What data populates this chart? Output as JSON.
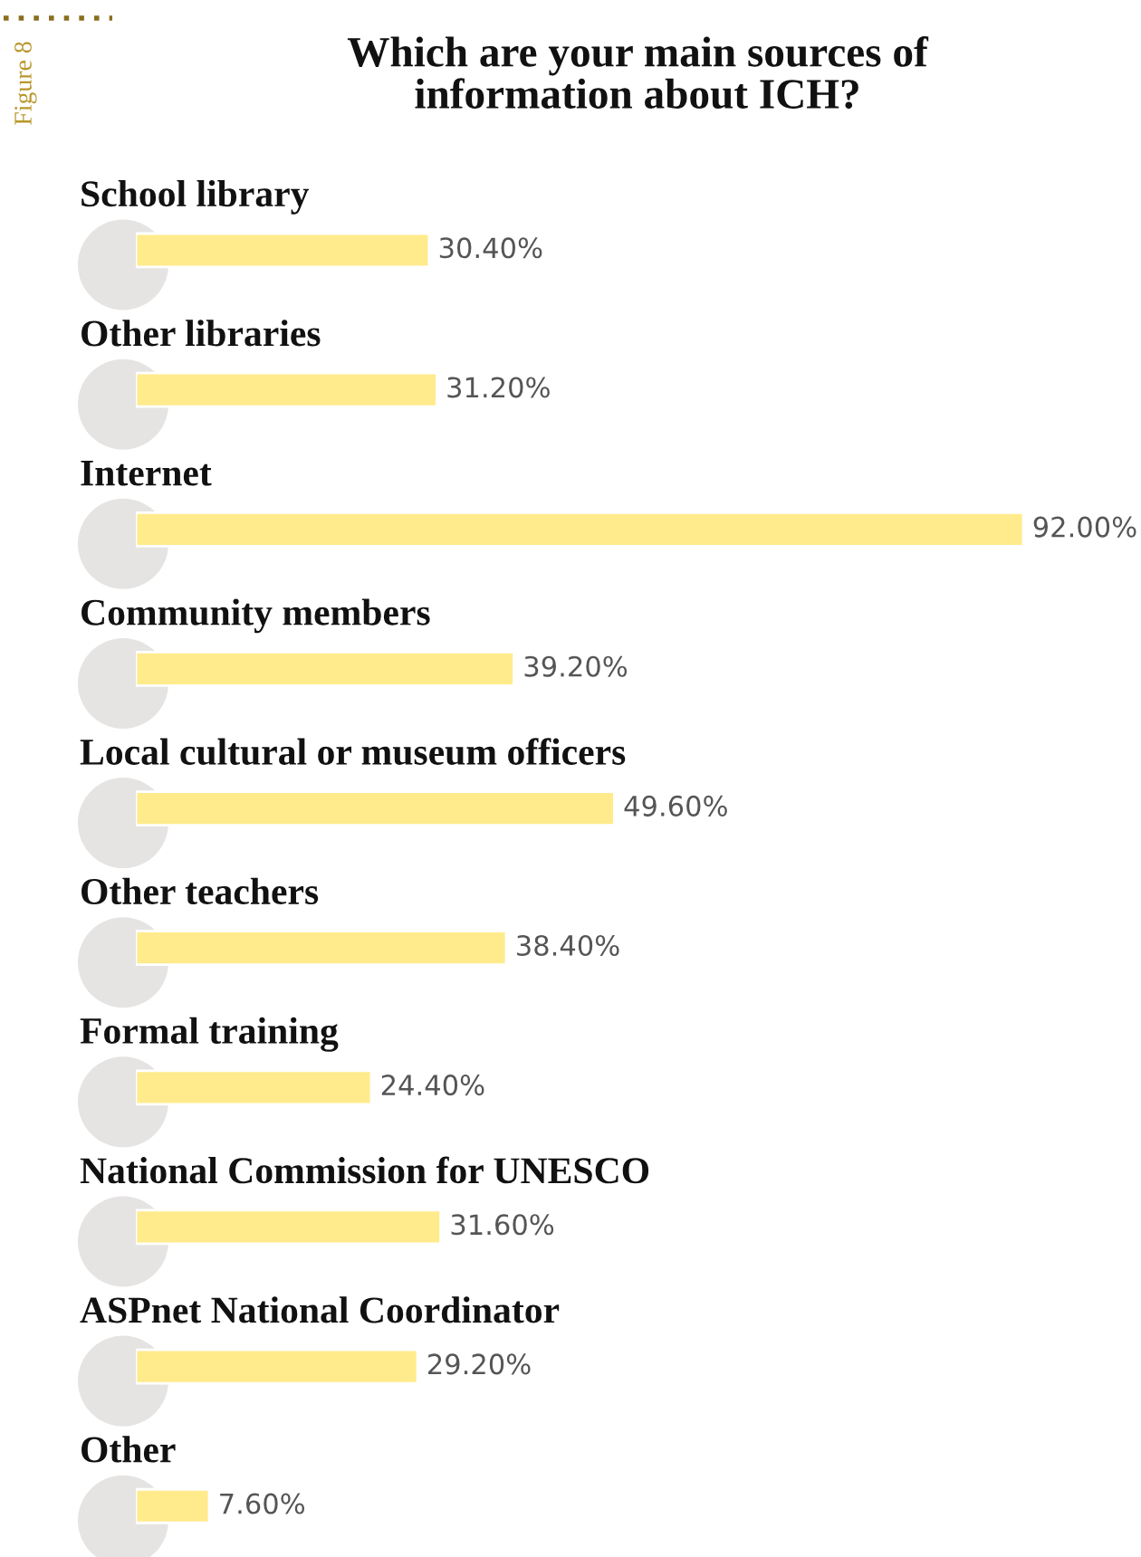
{
  "chart_data": {
    "type": "bar",
    "orientation": "horizontal",
    "title": "Which are your main sources of\ninformation about ICH?",
    "categories": [
      "School library",
      "Other libraries",
      "Internet",
      "Community members",
      "Local cultural or museum officers",
      "Other teachers",
      "Formal training",
      "National Commission for UNESCO",
      "ASPnet National Coordinator",
      "Other"
    ],
    "values": [
      30.4,
      31.2,
      92.0,
      39.2,
      49.6,
      38.4,
      24.4,
      31.6,
      29.2,
      7.6
    ],
    "value_labels": [
      "30.40%",
      "31.20%",
      "92.00%",
      "39.20%",
      "49.60%",
      "38.40%",
      "24.40%",
      "31.60%",
      "29.20%",
      "7.60%"
    ],
    "color": "#ffeb8c",
    "annotations": [
      "Figure 8"
    ]
  }
}
